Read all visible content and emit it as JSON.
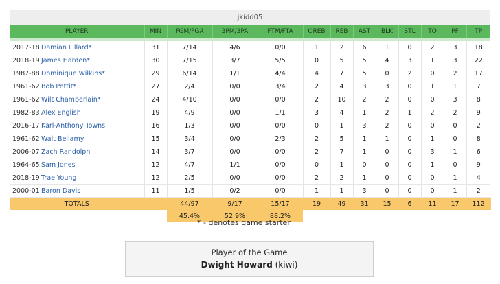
{
  "team": "jkidd05",
  "columns": [
    "PLAYER",
    "MIN",
    "FGM/FGA",
    "3PM/3PA",
    "FTM/FTA",
    "OREB",
    "REB",
    "AST",
    "BLK",
    "STL",
    "TO",
    "PF",
    "TP"
  ],
  "players": [
    {
      "year": "2017-18",
      "name": "Damian Lillard*",
      "min": "31",
      "fg": "7/14",
      "tp3": "4/6",
      "ft": "0/0",
      "oreb": "1",
      "reb": "2",
      "ast": "6",
      "blk": "1",
      "stl": "0",
      "to": "2",
      "pf": "3",
      "tp": "18"
    },
    {
      "year": "2018-19",
      "name": "James Harden*",
      "min": "30",
      "fg": "7/15",
      "tp3": "3/7",
      "ft": "5/5",
      "oreb": "0",
      "reb": "5",
      "ast": "5",
      "blk": "4",
      "stl": "3",
      "to": "1",
      "pf": "3",
      "tp": "22"
    },
    {
      "year": "1987-88",
      "name": "Dominique Wilkins*",
      "min": "29",
      "fg": "6/14",
      "tp3": "1/1",
      "ft": "4/4",
      "oreb": "4",
      "reb": "7",
      "ast": "5",
      "blk": "0",
      "stl": "2",
      "to": "0",
      "pf": "2",
      "tp": "17"
    },
    {
      "year": "1961-62",
      "name": "Bob Pettit*",
      "min": "27",
      "fg": "2/4",
      "tp3": "0/0",
      "ft": "3/4",
      "oreb": "2",
      "reb": "4",
      "ast": "3",
      "blk": "3",
      "stl": "0",
      "to": "1",
      "pf": "1",
      "tp": "7"
    },
    {
      "year": "1961-62",
      "name": "Wilt Chamberlain*",
      "min": "24",
      "fg": "4/10",
      "tp3": "0/0",
      "ft": "0/0",
      "oreb": "2",
      "reb": "10",
      "ast": "2",
      "blk": "2",
      "stl": "0",
      "to": "0",
      "pf": "3",
      "tp": "8"
    },
    {
      "year": "1982-83",
      "name": "Alex English",
      "min": "19",
      "fg": "4/9",
      "tp3": "0/0",
      "ft": "1/1",
      "oreb": "3",
      "reb": "4",
      "ast": "1",
      "blk": "2",
      "stl": "1",
      "to": "2",
      "pf": "2",
      "tp": "9"
    },
    {
      "year": "2016-17",
      "name": "Karl-Anthony Towns",
      "min": "16",
      "fg": "1/3",
      "tp3": "0/0",
      "ft": "0/0",
      "oreb": "0",
      "reb": "1",
      "ast": "3",
      "blk": "2",
      "stl": "0",
      "to": "0",
      "pf": "0",
      "tp": "2"
    },
    {
      "year": "1961-62",
      "name": "Walt Bellamy",
      "min": "15",
      "fg": "3/4",
      "tp3": "0/0",
      "ft": "2/3",
      "oreb": "2",
      "reb": "5",
      "ast": "1",
      "blk": "1",
      "stl": "0",
      "to": "1",
      "pf": "0",
      "tp": "8"
    },
    {
      "year": "2006-07",
      "name": "Zach Randolph",
      "min": "14",
      "fg": "3/7",
      "tp3": "0/0",
      "ft": "0/0",
      "oreb": "2",
      "reb": "7",
      "ast": "1",
      "blk": "0",
      "stl": "0",
      "to": "3",
      "pf": "1",
      "tp": "6"
    },
    {
      "year": "1964-65",
      "name": "Sam Jones",
      "min": "12",
      "fg": "4/7",
      "tp3": "1/1",
      "ft": "0/0",
      "oreb": "0",
      "reb": "1",
      "ast": "0",
      "blk": "0",
      "stl": "0",
      "to": "1",
      "pf": "0",
      "tp": "9"
    },
    {
      "year": "2018-19",
      "name": "Trae Young",
      "min": "12",
      "fg": "2/5",
      "tp3": "0/0",
      "ft": "0/0",
      "oreb": "2",
      "reb": "2",
      "ast": "1",
      "blk": "0",
      "stl": "0",
      "to": "0",
      "pf": "1",
      "tp": "4"
    },
    {
      "year": "2000-01",
      "name": "Baron Davis",
      "min": "11",
      "fg": "1/5",
      "tp3": "0/2",
      "ft": "0/0",
      "oreb": "1",
      "reb": "1",
      "ast": "3",
      "blk": "0",
      "stl": "0",
      "to": "0",
      "pf": "1",
      "tp": "2"
    }
  ],
  "totals": {
    "label": "TOTALS",
    "fg": "44/97",
    "tp3": "9/17",
    "ft": "15/17",
    "oreb": "19",
    "reb": "49",
    "ast": "31",
    "blk": "15",
    "stl": "6",
    "to": "11",
    "pf": "17",
    "tp": "112"
  },
  "percentages": {
    "fg": "45.4%",
    "tp3": "52.9%",
    "ft": "88.2%"
  },
  "starter_note": "* - denotes game starter",
  "potg": {
    "title": "Player of the Game",
    "name": "Dwight Howard",
    "owner": "(kiwi)"
  },
  "colors": {
    "header_green": "#5cb85c",
    "totals_orange": "#f8c86a",
    "link_blue": "#2b5fa8"
  }
}
